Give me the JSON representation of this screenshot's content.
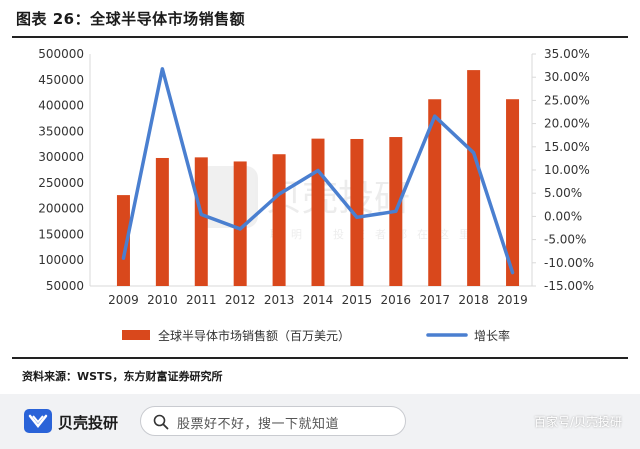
{
  "figure_title": "图表 26：全球半导体市场销售额",
  "source_note": "资料来源：WSTS，东方财富证券研究所",
  "watermark": {
    "brand": "贝壳投研",
    "tagline": "聪明的投资者都在这里"
  },
  "footer": {
    "logo_text": "贝壳投研",
    "search_placeholder": "股票好不好，搜一下就知道",
    "attribution": "百家号/贝壳投研"
  },
  "colors": {
    "bar": "#d9481c",
    "line": "#4a7fd0",
    "axis": "#d9d9d9",
    "text": "#333333"
  },
  "chart_data": {
    "type": "bar",
    "title": "",
    "categories": [
      "2009",
      "2010",
      "2011",
      "2012",
      "2013",
      "2014",
      "2015",
      "2016",
      "2017",
      "2018",
      "2019"
    ],
    "series": [
      {
        "name": "全球半导体市场销售额（百万美元）",
        "type": "bar",
        "axis": "left",
        "values": [
          226313,
          298315,
          299521,
          291562,
          305584,
          335843,
          335168,
          338931,
          412221,
          468778,
          412307
        ]
      },
      {
        "name": "增长率",
        "type": "line",
        "axis": "right",
        "values": [
          -9.0,
          31.8,
          0.4,
          -2.7,
          4.8,
          9.9,
          -0.2,
          1.1,
          21.6,
          13.7,
          -12.1
        ]
      }
    ],
    "y_left": {
      "ylim": [
        50000,
        500000
      ],
      "ticks": [
        "500000",
        "450000",
        "400000",
        "350000",
        "300000",
        "250000",
        "200000",
        "150000",
        "100000",
        "50000"
      ]
    },
    "y_right": {
      "ylim": [
        -15,
        35
      ],
      "ticks": [
        "35.00%",
        "30.00%",
        "25.00%",
        "20.00%",
        "15.00%",
        "10.00%",
        "5.00%",
        "0.00%",
        "-5.00%",
        "-10.00%",
        "-15.00%"
      ]
    },
    "grid": false,
    "legend_position": "bottom"
  }
}
